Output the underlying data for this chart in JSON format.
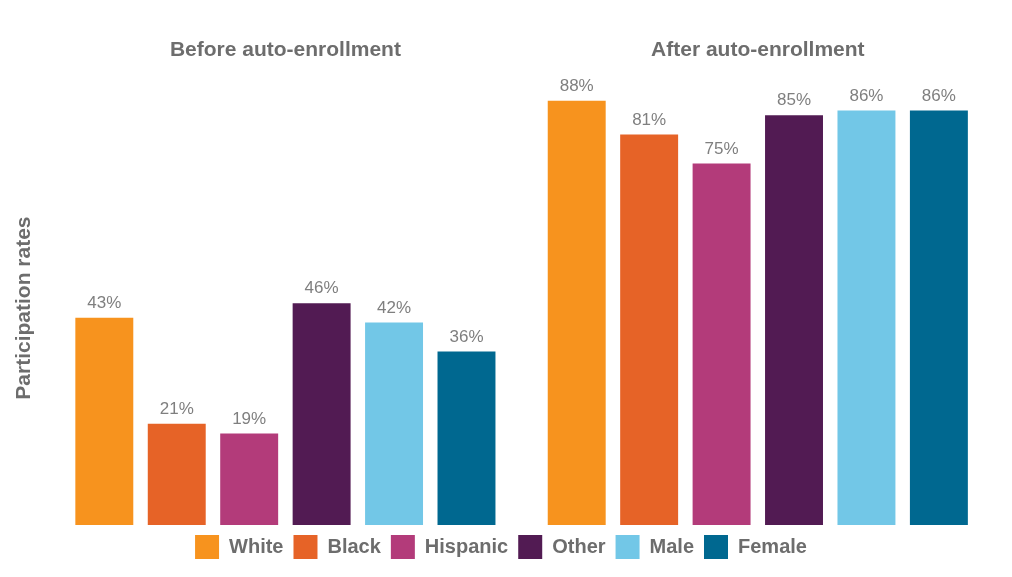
{
  "chart_data": {
    "type": "bar",
    "ylabel": "Participation rates",
    "categories": [
      "Before auto-enrollment",
      "After auto-enrollment"
    ],
    "series": [
      {
        "name": "White",
        "color": "#f7931e",
        "values": [
          43,
          88
        ],
        "value_labels": [
          "43%",
          "88%"
        ]
      },
      {
        "name": "Black",
        "color": "#e66327",
        "values": [
          21,
          81
        ],
        "value_labels": [
          "21%",
          "81%"
        ]
      },
      {
        "name": "Hispanic",
        "color": "#b33b7a",
        "values": [
          19,
          75
        ],
        "value_labels": [
          "19%",
          "75%"
        ]
      },
      {
        "name": "Other",
        "color": "#521b53",
        "values": [
          46,
          85
        ],
        "value_labels": [
          "46%",
          "85%"
        ]
      },
      {
        "name": "Male",
        "color": "#72c7e7",
        "values": [
          42,
          86
        ],
        "value_labels": [
          "42%",
          "86%"
        ]
      },
      {
        "name": "Female",
        "color": "#006890",
        "values": [
          36,
          86
        ],
        "value_labels": [
          "36%",
          "86%"
        ]
      }
    ],
    "legend": "bottom",
    "grid": false
  }
}
